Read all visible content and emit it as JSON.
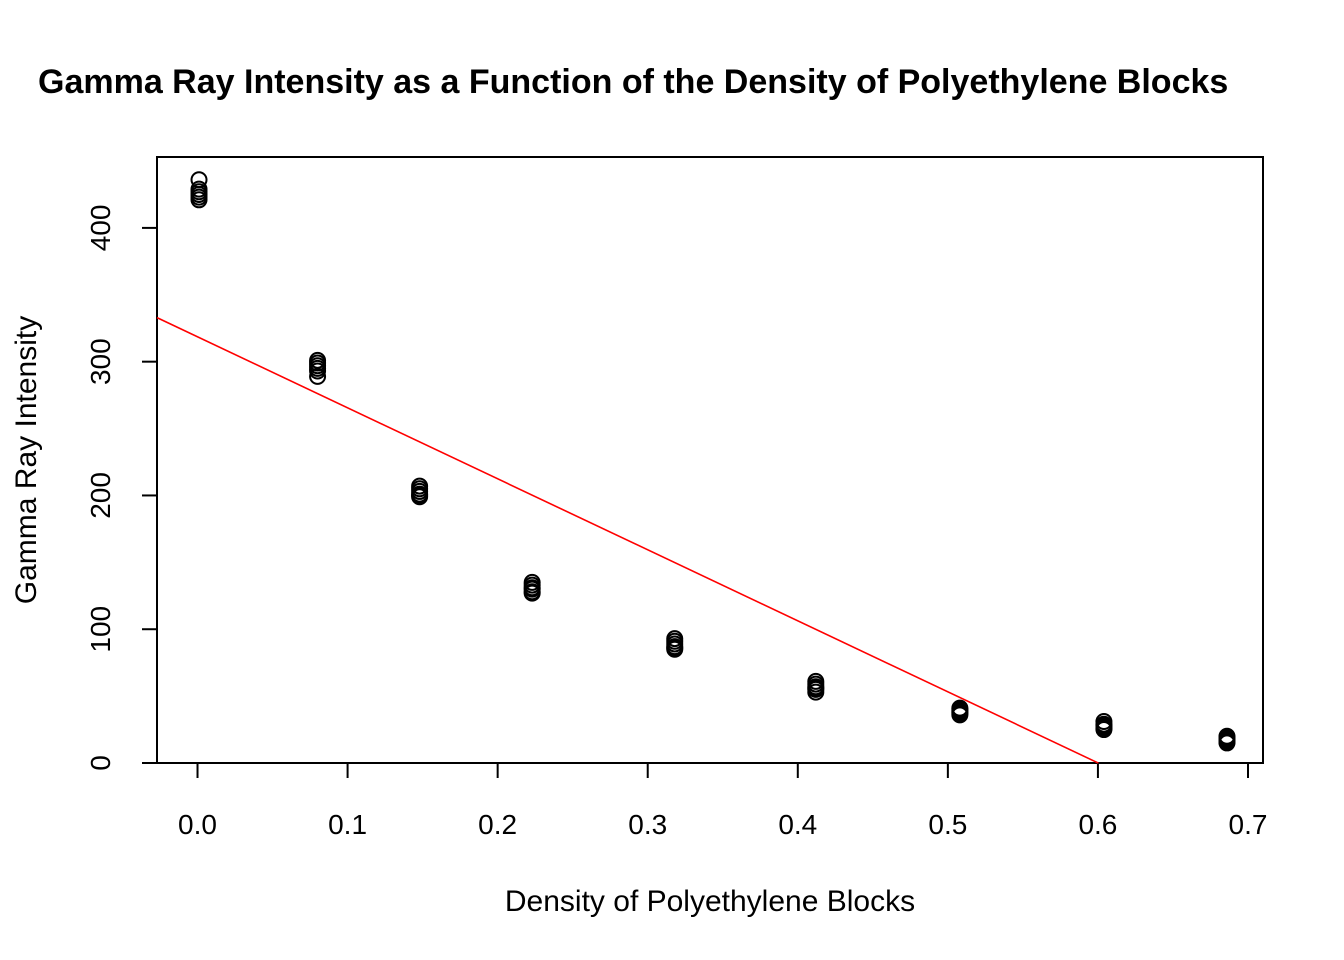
{
  "chart_data": {
    "type": "scatter",
    "title": "Gamma Ray Intensity as a Function of the Density of Polyethylene Blocks",
    "xlabel": "Density of Polyethylene Blocks",
    "ylabel": "Gamma Ray Intensity",
    "xlim": [
      -0.027,
      0.71
    ],
    "ylim": [
      0,
      453
    ],
    "x_ticks": [
      0.0,
      0.1,
      0.2,
      0.3,
      0.4,
      0.5,
      0.6,
      0.7
    ],
    "x_tick_labels": [
      "0.0",
      "0.1",
      "0.2",
      "0.3",
      "0.4",
      "0.5",
      "0.6",
      "0.7"
    ],
    "y_ticks": [
      0,
      100,
      200,
      300,
      400
    ],
    "y_tick_labels": [
      "0",
      "100",
      "200",
      "300",
      "400"
    ],
    "grid": false,
    "points": [
      {
        "x": 0.001,
        "y": 436
      },
      {
        "x": 0.001,
        "y": 429
      },
      {
        "x": 0.001,
        "y": 427
      },
      {
        "x": 0.001,
        "y": 425
      },
      {
        "x": 0.001,
        "y": 423
      },
      {
        "x": 0.001,
        "y": 421
      },
      {
        "x": 0.08,
        "y": 301
      },
      {
        "x": 0.08,
        "y": 299
      },
      {
        "x": 0.08,
        "y": 297
      },
      {
        "x": 0.08,
        "y": 295
      },
      {
        "x": 0.08,
        "y": 293
      },
      {
        "x": 0.08,
        "y": 289
      },
      {
        "x": 0.148,
        "y": 207
      },
      {
        "x": 0.148,
        "y": 205
      },
      {
        "x": 0.148,
        "y": 203
      },
      {
        "x": 0.148,
        "y": 201
      },
      {
        "x": 0.148,
        "y": 200
      },
      {
        "x": 0.148,
        "y": 199
      },
      {
        "x": 0.223,
        "y": 135
      },
      {
        "x": 0.223,
        "y": 133
      },
      {
        "x": 0.223,
        "y": 131
      },
      {
        "x": 0.223,
        "y": 130
      },
      {
        "x": 0.223,
        "y": 128
      },
      {
        "x": 0.223,
        "y": 127
      },
      {
        "x": 0.318,
        "y": 93
      },
      {
        "x": 0.318,
        "y": 91
      },
      {
        "x": 0.318,
        "y": 89
      },
      {
        "x": 0.318,
        "y": 87
      },
      {
        "x": 0.318,
        "y": 86
      },
      {
        "x": 0.318,
        "y": 85
      },
      {
        "x": 0.412,
        "y": 61
      },
      {
        "x": 0.412,
        "y": 59
      },
      {
        "x": 0.412,
        "y": 57
      },
      {
        "x": 0.412,
        "y": 56
      },
      {
        "x": 0.412,
        "y": 55
      },
      {
        "x": 0.412,
        "y": 53
      },
      {
        "x": 0.508,
        "y": 41
      },
      {
        "x": 0.508,
        "y": 40
      },
      {
        "x": 0.508,
        "y": 39
      },
      {
        "x": 0.508,
        "y": 38
      },
      {
        "x": 0.508,
        "y": 37
      },
      {
        "x": 0.508,
        "y": 36
      },
      {
        "x": 0.604,
        "y": 31
      },
      {
        "x": 0.604,
        "y": 29
      },
      {
        "x": 0.604,
        "y": 28
      },
      {
        "x": 0.604,
        "y": 27
      },
      {
        "x": 0.604,
        "y": 26
      },
      {
        "x": 0.604,
        "y": 25
      },
      {
        "x": 0.686,
        "y": 20
      },
      {
        "x": 0.686,
        "y": 19
      },
      {
        "x": 0.686,
        "y": 18
      },
      {
        "x": 0.686,
        "y": 17
      },
      {
        "x": 0.686,
        "y": 16
      },
      {
        "x": 0.686,
        "y": 15
      }
    ],
    "fit_line": {
      "intercept": 318.6,
      "slope": -530.8,
      "x_range": [
        -0.027,
        0.6003
      ]
    },
    "colors": {
      "points": "#000000",
      "fit_line": "#ff0000",
      "background": "#ffffff"
    }
  }
}
